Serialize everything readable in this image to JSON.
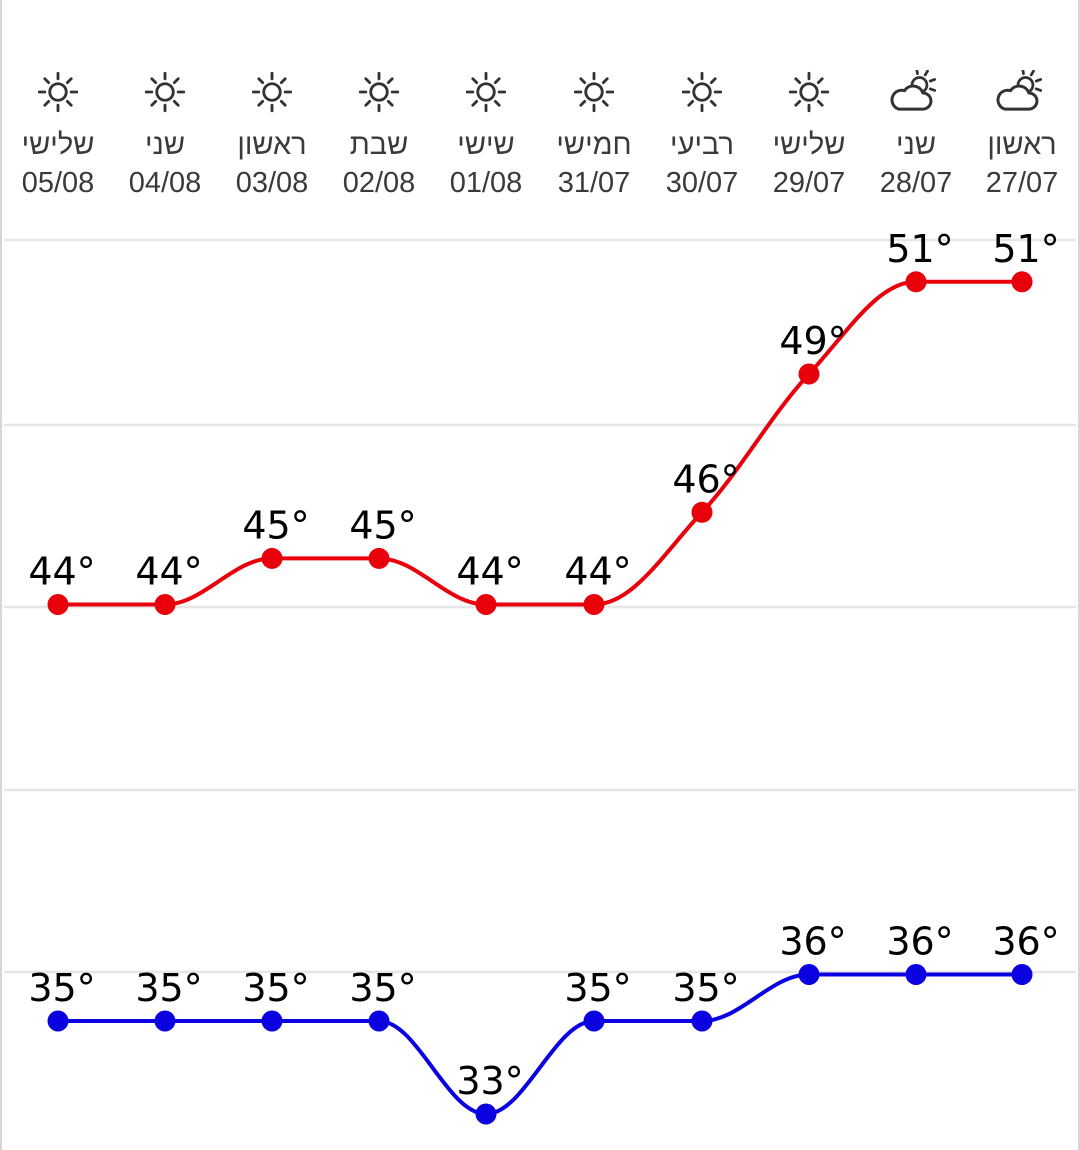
{
  "days": [
    {
      "name": "שלישי",
      "date": "05/08",
      "icon": "sun-icon"
    },
    {
      "name": "שני",
      "date": "04/08",
      "icon": "sun-icon"
    },
    {
      "name": "ראשון",
      "date": "03/08",
      "icon": "sun-icon"
    },
    {
      "name": "שבת",
      "date": "02/08",
      "icon": "sun-icon"
    },
    {
      "name": "שישי",
      "date": "01/08",
      "icon": "sun-icon"
    },
    {
      "name": "חמישי",
      "date": "31/07",
      "icon": "sun-icon"
    },
    {
      "name": "רביעי",
      "date": "30/07",
      "icon": "sun-icon"
    },
    {
      "name": "שלישי",
      "date": "29/07",
      "icon": "sun-icon"
    },
    {
      "name": "שני",
      "date": "28/07",
      "icon": "partly-cloudy-icon"
    },
    {
      "name": "ראשון",
      "date": "27/07",
      "icon": "partly-cloudy-icon"
    }
  ],
  "chart_data": {
    "type": "line",
    "categories": [
      "05/08",
      "04/08",
      "03/08",
      "02/08",
      "01/08",
      "31/07",
      "30/07",
      "29/07",
      "28/07",
      "27/07"
    ],
    "series": [
      {
        "values": [
          44,
          44,
          45,
          45,
          44,
          44,
          46,
          49,
          51,
          51
        ],
        "labels": [
          "44°",
          "44°",
          "45°",
          "45°",
          "44°",
          "44°",
          "46°",
          "49°",
          "51°",
          "51°"
        ],
        "color": "#e8000b"
      },
      {
        "values": [
          35,
          35,
          35,
          35,
          33,
          35,
          35,
          36,
          36,
          36
        ],
        "labels": [
          "35°",
          "35°",
          "35°",
          "35°",
          "33°",
          "35°",
          "35°",
          "36°",
          "36°",
          "36°"
        ],
        "color": "#0a00e0"
      }
    ],
    "grid": true,
    "legend": "none"
  },
  "colors": {
    "grid": "#e6e6e6",
    "icon": "#333333",
    "text": "#3a3a3a"
  }
}
